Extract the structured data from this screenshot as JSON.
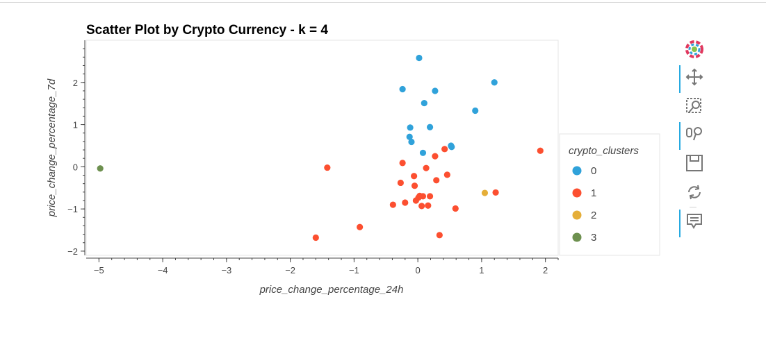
{
  "chart_data": {
    "type": "scatter",
    "title": "Scatter Plot by Crypto Currency - k = 4",
    "xlabel": "price_change_percentage_24h",
    "ylabel": "price_change_percentage_7d",
    "xlim": [
      -5.2,
      2.2
    ],
    "ylim": [
      -2.1,
      3.0
    ],
    "xticks": [
      -5,
      -4,
      -3,
      -2,
      -1,
      0,
      1,
      2
    ],
    "yticks": [
      -2,
      -1,
      0,
      1,
      2
    ],
    "xtick_labels": [
      "−5",
      "−4",
      "−3",
      "−2",
      "−1",
      "0",
      "1",
      "2"
    ],
    "ytick_labels": [
      "−2",
      "−1",
      "0",
      "1",
      "2"
    ],
    "grid": false,
    "legend": {
      "title": "crypto_clusters",
      "placement": "right"
    },
    "series": [
      {
        "name": "0",
        "color": "#30a2da",
        "points": [
          [
            0.02,
            2.58
          ],
          [
            1.2,
            2.0
          ],
          [
            -0.24,
            1.84
          ],
          [
            0.27,
            1.8
          ],
          [
            0.1,
            1.51
          ],
          [
            0.9,
            1.33
          ],
          [
            -0.12,
            0.93
          ],
          [
            0.19,
            0.94
          ],
          [
            -0.13,
            0.71
          ],
          [
            -0.1,
            0.59
          ],
          [
            0.08,
            0.33
          ],
          [
            0.52,
            0.5
          ],
          [
            0.53,
            0.47
          ]
        ]
      },
      {
        "name": "1",
        "color": "#fc4f30",
        "points": [
          [
            1.92,
            0.38
          ],
          [
            0.42,
            0.42
          ],
          [
            0.27,
            0.25
          ],
          [
            -1.42,
            -0.02
          ],
          [
            -0.24,
            0.09
          ],
          [
            0.13,
            -0.03
          ],
          [
            -0.06,
            -0.22
          ],
          [
            0.46,
            -0.19
          ],
          [
            -0.27,
            -0.38
          ],
          [
            0.29,
            -0.32
          ],
          [
            -0.05,
            -0.45
          ],
          [
            1.22,
            -0.61
          ],
          [
            0.03,
            -0.69
          ],
          [
            0.08,
            -0.7
          ],
          [
            0.01,
            -0.73
          ],
          [
            0.19,
            -0.7
          ],
          [
            -0.03,
            -0.8
          ],
          [
            -0.2,
            -0.85
          ],
          [
            -0.39,
            -0.9
          ],
          [
            0.06,
            -0.93
          ],
          [
            0.16,
            -0.92
          ],
          [
            0.59,
            -0.99
          ],
          [
            -0.91,
            -1.43
          ],
          [
            0.34,
            -1.62
          ],
          [
            -1.6,
            -1.68
          ]
        ]
      },
      {
        "name": "2",
        "color": "#e5ae38",
        "points": [
          [
            1.05,
            -0.62
          ]
        ]
      },
      {
        "name": "3",
        "color": "#6d904f",
        "points": [
          [
            -4.98,
            -0.04
          ]
        ]
      }
    ]
  }
}
